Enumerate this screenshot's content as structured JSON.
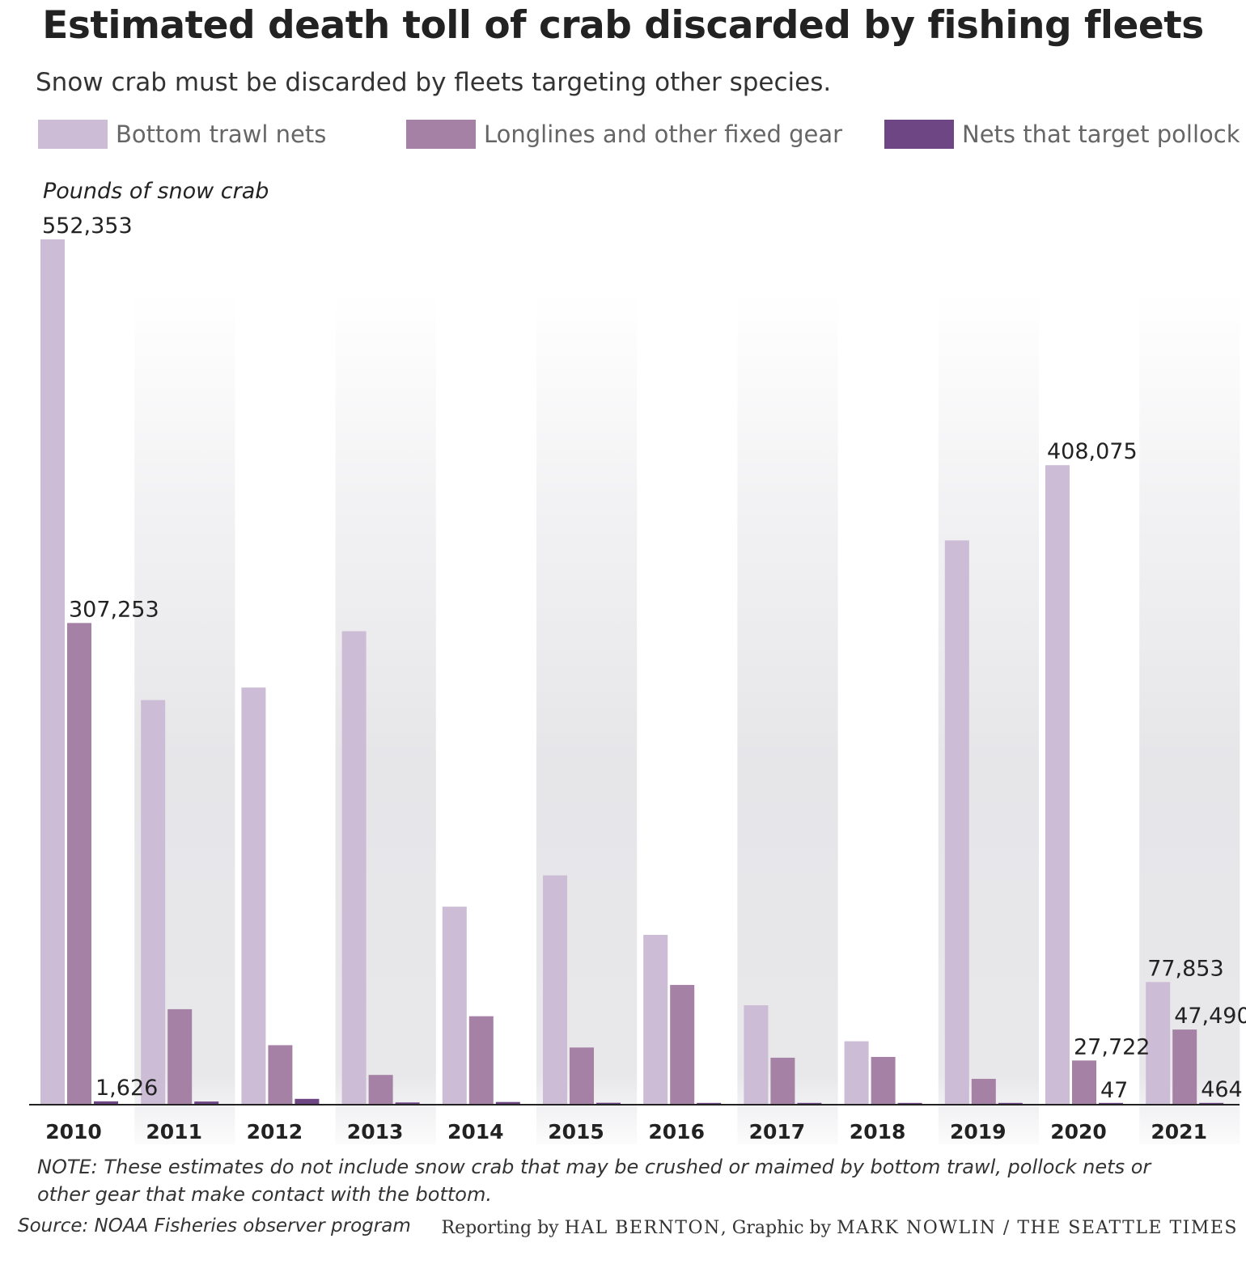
{
  "header": {
    "title": "Estimated death toll of crab discarded by fishing fleets",
    "subtitle": "Snow crab must be discarded by fleets targeting other species."
  },
  "legend": [
    {
      "label": "Bottom trawl nets",
      "color": "#cdbcd5"
    },
    {
      "label": "Longlines and other fixed gear",
      "color": "#a581a6"
    },
    {
      "label": "Nets that target pollock",
      "color": "#6e4683"
    }
  ],
  "chart_data": {
    "type": "bar",
    "ylabel": "Pounds of snow crab",
    "categories": [
      "2010",
      "2011",
      "2012",
      "2013",
      "2014",
      "2015",
      "2016",
      "2017",
      "2018",
      "2019",
      "2020",
      "2021"
    ],
    "series": [
      {
        "name": "Bottom trawl nets",
        "color": "#cdbcd5",
        "values": [
          552353,
          258000,
          266000,
          302000,
          126000,
          146000,
          108000,
          63000,
          40000,
          360000,
          408075,
          77853
        ]
      },
      {
        "name": "Longlines and other fixed gear",
        "color": "#a581a6",
        "values": [
          307253,
          60500,
          37500,
          18500,
          56000,
          36000,
          76000,
          29500,
          30000,
          16000,
          27722,
          47490
        ]
      },
      {
        "name": "Nets that target pollock",
        "color": "#6e4683",
        "values": [
          1626,
          1500,
          3200,
          900,
          1200,
          700,
          600,
          300,
          200,
          300,
          47,
          464
        ]
      }
    ],
    "data_labels": [
      {
        "category": "2010",
        "series": 0,
        "text": "552,353"
      },
      {
        "category": "2010",
        "series": 1,
        "text": "307,253"
      },
      {
        "category": "2010",
        "series": 2,
        "text": "1,626"
      },
      {
        "category": "2020",
        "series": 0,
        "text": "408,075"
      },
      {
        "category": "2020",
        "series": 1,
        "text": "27,722"
      },
      {
        "category": "2020",
        "series": 2,
        "text": "47"
      },
      {
        "category": "2021",
        "series": 0,
        "text": "77,853"
      },
      {
        "category": "2021",
        "series": 1,
        "text": "47,490"
      },
      {
        "category": "2021",
        "series": 2,
        "text": "464"
      }
    ],
    "ylim": [
      0,
      552353
    ],
    "grid": false,
    "legend_position": "top"
  },
  "footer": {
    "note": "NOTE: These estimates do not include snow crab that may be crushed or maimed by bottom trawl, pollock nets or other gear that make contact with the bottom.",
    "source": "Source: NOAA Fisheries observer program",
    "credit_reporting_prefix": "Reporting by",
    "credit_reporter": "HAL BERNTON",
    "credit_graphic_prefix": ", Graphic by",
    "credit_artist": "MARK NOWLIN / THE SEATTLE TIMES"
  }
}
